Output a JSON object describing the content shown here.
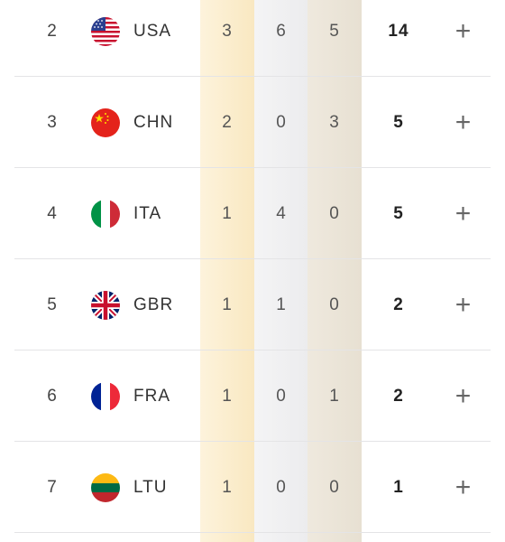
{
  "medal_table": {
    "rows": [
      {
        "rank": "2",
        "country": "USA",
        "flag": "usa-flag-icon",
        "gold": "3",
        "silver": "6",
        "bronze": "5",
        "total": "14",
        "expand": "+"
      },
      {
        "rank": "3",
        "country": "CHN",
        "flag": "china-flag-icon",
        "gold": "2",
        "silver": "0",
        "bronze": "3",
        "total": "5",
        "expand": "+"
      },
      {
        "rank": "4",
        "country": "ITA",
        "flag": "italy-flag-icon",
        "gold": "1",
        "silver": "4",
        "bronze": "0",
        "total": "5",
        "expand": "+"
      },
      {
        "rank": "5",
        "country": "GBR",
        "flag": "uk-flag-icon",
        "gold": "1",
        "silver": "1",
        "bronze": "0",
        "total": "2",
        "expand": "+"
      },
      {
        "rank": "6",
        "country": "FRA",
        "flag": "france-flag-icon",
        "gold": "1",
        "silver": "0",
        "bronze": "1",
        "total": "2",
        "expand": "+"
      },
      {
        "rank": "7",
        "country": "LTU",
        "flag": "lithuania-flag-icon",
        "gold": "1",
        "silver": "0",
        "bronze": "0",
        "total": "1",
        "expand": "+"
      }
    ]
  },
  "colors": {
    "gold_column": "#f9e8c1",
    "silver_column": "#ececee",
    "bronze_column": "#e7e0d2",
    "divider": "#e4e4e6"
  }
}
